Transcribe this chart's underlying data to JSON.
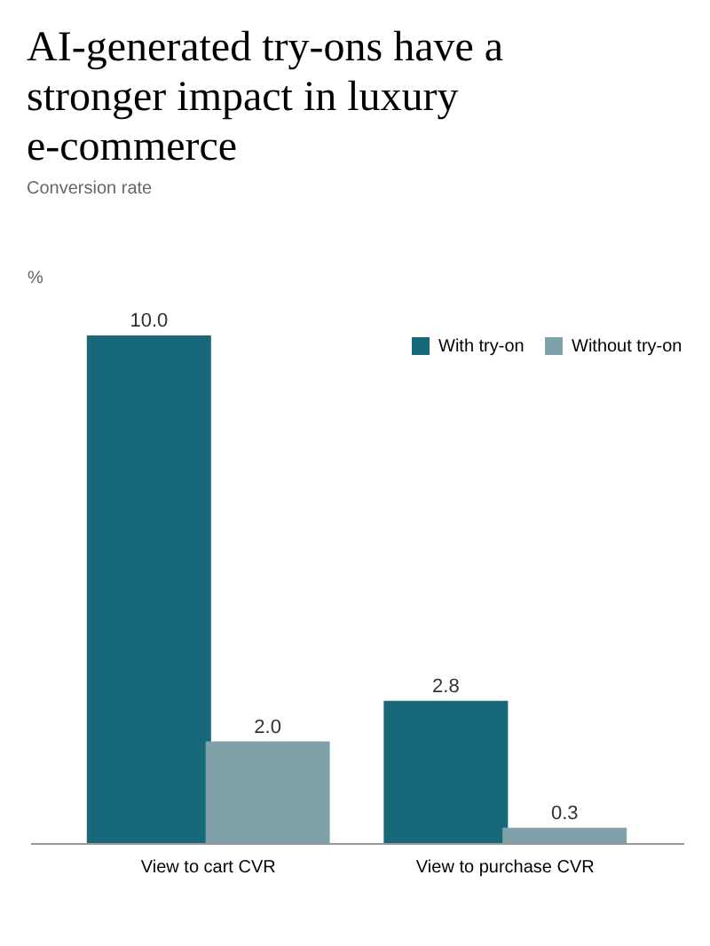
{
  "chart_data": {
    "type": "bar",
    "title": "AI-generated try-ons have a stronger impact in luxury e-commerce",
    "subtitle": "Conversion rate",
    "ylabel": "%",
    "categories": [
      "View to cart CVR",
      "View to purchase CVR"
    ],
    "series": [
      {
        "name": "With try-on",
        "color": "#17697a",
        "values": [
          10.0,
          2.8
        ],
        "value_labels": [
          "10.0",
          "2.8"
        ]
      },
      {
        "name": "Without try-on",
        "color": "#7fa2a8",
        "values": [
          2.0,
          0.3
        ],
        "value_labels": [
          "2.0",
          "0.3"
        ]
      }
    ],
    "legend": "top right",
    "grid": false
  }
}
